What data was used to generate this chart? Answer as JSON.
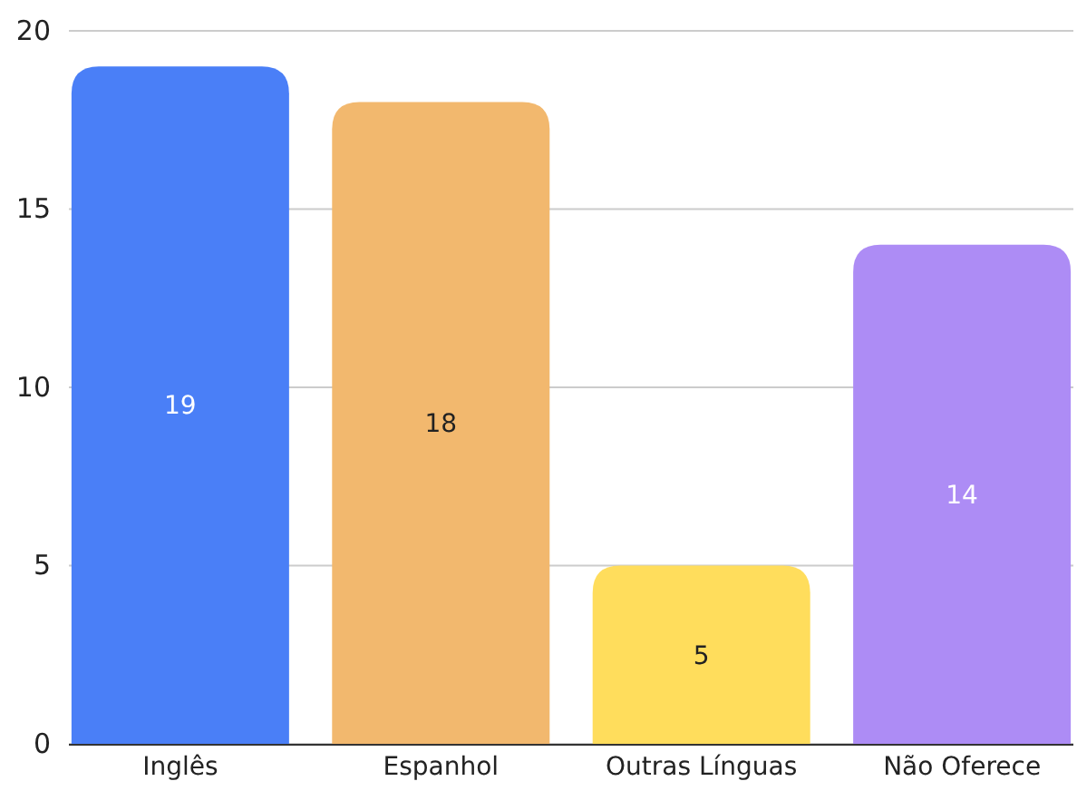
{
  "chart_data": {
    "type": "bar",
    "categories": [
      "Inglês",
      "Espanhol",
      "Outras Línguas",
      "Não Oferece"
    ],
    "values": [
      19,
      18,
      5,
      14
    ],
    "colors": [
      "#4a7ff7",
      "#f2b86e",
      "#ffdd5c",
      "#ad8cf5"
    ],
    "ylim": [
      0,
      20
    ],
    "yticks": [
      0,
      5,
      10,
      15,
      20
    ],
    "grid": "y",
    "data_labels": true
  }
}
